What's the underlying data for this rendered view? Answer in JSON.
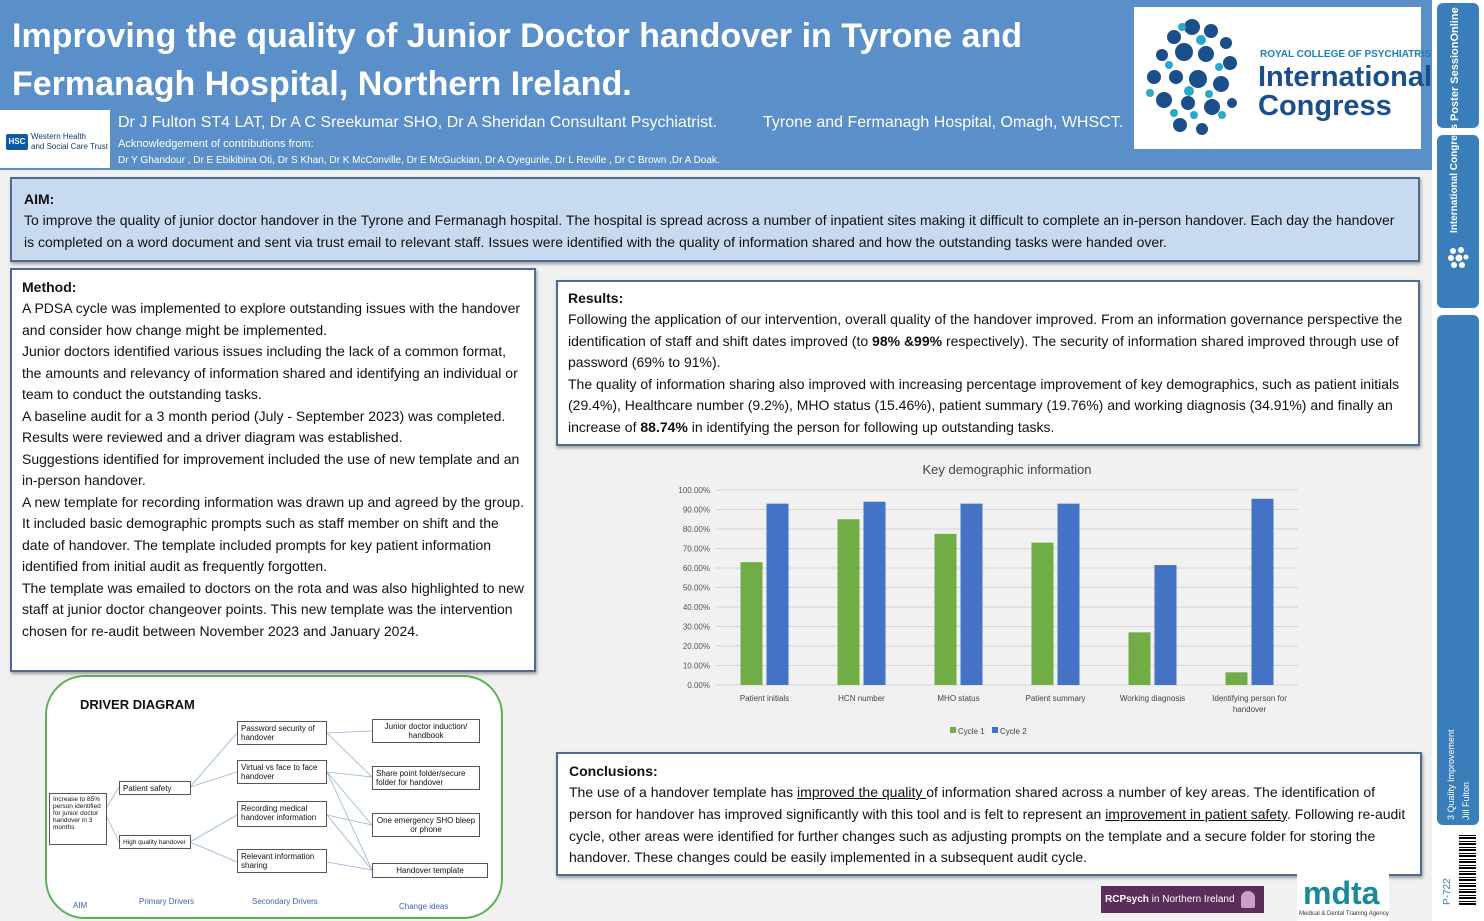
{
  "header": {
    "title_main": "Improving the quality of Junior Doctor handover in Tyrone and Fermanagh Hospital, Northern Ireland",
    "title_dot": ".",
    "authors": "Dr J Fulton ST4 LAT, Dr A C Sreekumar SHO, Dr A Sheridan Consultant Psychiatrist.",
    "hospital": "Tyrone and Fermanagh Hospital, Omagh, WHSCT.",
    "ack_heading": "Acknowledgement of contributions from:",
    "ack_names": "Dr Y Ghandour , Dr E Ebikibina Oti, Dr S Khan, Dr K McConville, Dr E McGuckian, Dr A Oyegunle, Dr L Reville , Dr C Brown ,Dr A Doak.",
    "hsc_badge": "HSC",
    "hsc_org_line1": "Western Health",
    "hsc_org_line2": "and Social Care Trust"
  },
  "congress_logo": {
    "org": "ROYAL COLLEGE OF PSYCHIATRISTS",
    "line1": "International",
    "line2": "Congress"
  },
  "sidebar": {
    "tab1": "Poster SessionOnline",
    "tab2": "International Congress",
    "category": "3 Quality Improvement",
    "author": "Jill Fulton",
    "poster_id": "P-722"
  },
  "aim": {
    "heading": "AIM:",
    "text": "To improve the quality of junior doctor handover in the Tyrone and Fermanagh hospital. The hospital is spread across a number of inpatient sites making it difficult to complete an in-person handover. Each day the handover is completed on a word document and sent via trust email to relevant staff. Issues were identified with the quality of information shared and how the outstanding tasks were handed over."
  },
  "method": {
    "heading": "Method:",
    "paragraphs": [
      "A PDSA cycle was implemented to explore outstanding issues with the handover and consider how change might be implemented.",
      "Junior doctors identified various issues including the lack of a common format, the amounts and relevancy of information shared and identifying an individual or team to conduct the outstanding tasks.",
      "A baseline audit for a 3 month period (July - September 2023) was completed. Results were reviewed and a driver diagram was established.",
      "Suggestions identified for improvement included the use of new template and an in-person handover.",
      "A new template for recording information was drawn up and agreed by the group.",
      "It included basic demographic prompts such as staff member on shift and the date of handover. The template included prompts for key patient information identified from initial audit as frequently forgotten.",
      "The template was emailed to doctors on the rota and was also highlighted to new staff at junior doctor changeover points. This new template was the intervention chosen for re-audit between November 2023 and January 2024."
    ]
  },
  "results": {
    "heading": "Results:",
    "p1_a": "Following the application of our intervention, overall quality of the handover improved. From an information governance perspective the identification of staff and shift dates improved (to ",
    "p1_bold": "98% &99%",
    "p1_b": " respectively). The security of information shared improved through use of password (69% to 91%).",
    "p2_a": "The quality of information sharing also improved with increasing percentage improvement of key demographics, such as patient initials (29.4%), Healthcare number (9.2%), MHO status (15.46%), patient summary (19.76%) and working diagnosis (34.91%) and finally an increase of ",
    "p2_bold": "88.74%",
    "p2_b": " in identifying the person for following up outstanding tasks."
  },
  "chart_data": {
    "type": "bar",
    "title": "Key demographic information",
    "categories": [
      "Patient initials",
      "HCN number",
      "MHO status",
      "Patient summary",
      "Working diagnosis",
      "Identifying person for handover"
    ],
    "series": [
      {
        "name": "Cycle 1",
        "color": "#70ad47",
        "values": [
          63,
          85,
          77.5,
          73,
          27,
          6.5
        ]
      },
      {
        "name": "Cycle 2",
        "color": "#4472c4",
        "values": [
          93,
          94,
          93,
          93,
          61.5,
          95.5
        ]
      }
    ],
    "ylim": [
      0,
      100
    ],
    "yticks": [
      "0.00%",
      "10.00%",
      "20.00%",
      "30.00%",
      "40.00%",
      "50.00%",
      "60.00%",
      "70.00%",
      "80.00%",
      "90.00%",
      "100.00%"
    ],
    "grid": true,
    "legend": "bottom"
  },
  "conclusions": {
    "heading": "Conclusions:",
    "a": "The use of a handover template has ",
    "u1": "improved the quality ",
    "b": "of information shared across a number of key areas. The identification of person for handover has improved significantly with this tool and is felt to represent an ",
    "u2": "improvement in patient safety",
    "c": ". Following re-audit cycle, other areas were identified for further changes such as adjusting prompts on the template and a secure folder for storing the handover. These changes could be easily implemented in a subsequent audit cycle."
  },
  "driver": {
    "title": "DRIVER DIAGRAM",
    "aim_text": "Increase to 85% person identified for junior doctor handover in 3 months",
    "primary": [
      "Patient safety",
      "High quality handover"
    ],
    "secondary": [
      "Password security of handover",
      "Virtual vs face to face handover",
      "Recording medical handover information",
      "Relevant information sharing"
    ],
    "changes": [
      "Junior doctor induction/ handbook",
      "Share point folder/secure folder for handover",
      "One emergency SHO bleep or phone",
      "Handover template"
    ],
    "footer": [
      "AIM",
      "Primary Drivers",
      "Secondary Drivers",
      "Change ideas"
    ]
  },
  "footer_logos": {
    "rcpsych_bold": "RCPsych",
    "rcpsych_rest": " in Northern Ireland",
    "mdta": "mdta",
    "mdta_sub": "Medical & Dental Training Agency"
  }
}
